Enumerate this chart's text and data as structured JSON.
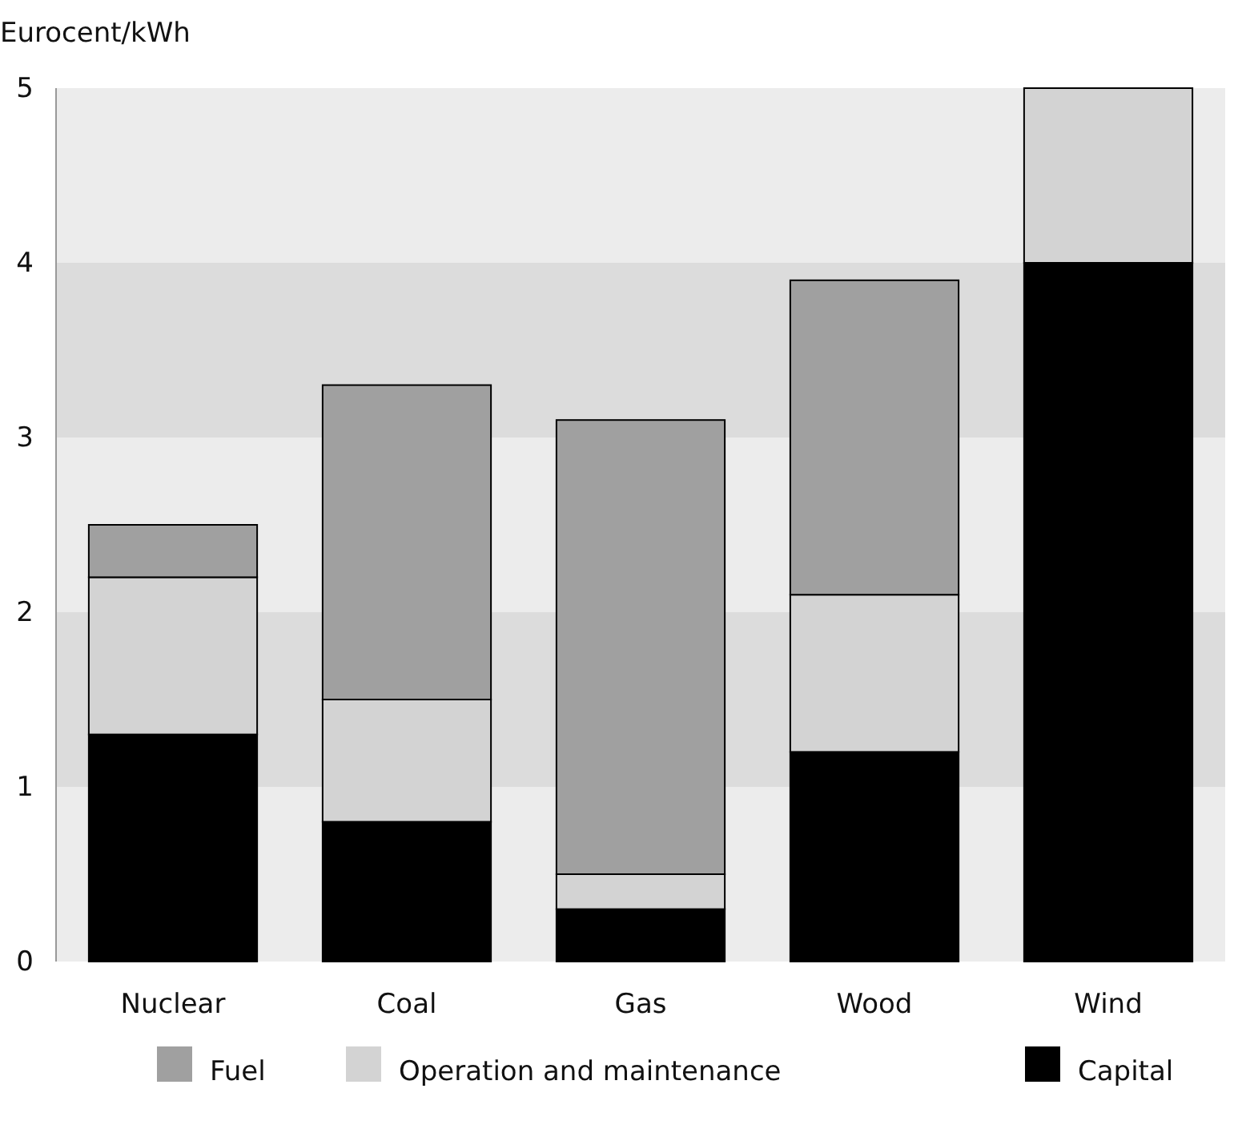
{
  "chart_data": {
    "type": "bar",
    "stacked": true,
    "ylabel": "Eurocent/kWh",
    "categories": [
      "Nuclear",
      "Coal",
      "Gas",
      "Wood",
      "Wind"
    ],
    "series": [
      {
        "name": "Capital",
        "color": "#000000",
        "values": [
          1.3,
          0.8,
          0.3,
          1.2,
          4.0
        ]
      },
      {
        "name": "Operation and maintenance",
        "color": "#d3d3d3",
        "values": [
          0.9,
          0.7,
          0.2,
          0.9,
          1.0
        ]
      },
      {
        "name": "Fuel",
        "color": "#a0a0a0",
        "values": [
          0.3,
          1.8,
          2.6,
          1.8,
          0
        ]
      }
    ],
    "ylim": [
      0,
      5
    ],
    "yticks": [
      0,
      1,
      2,
      3,
      4,
      5
    ],
    "legend": "bottom"
  }
}
